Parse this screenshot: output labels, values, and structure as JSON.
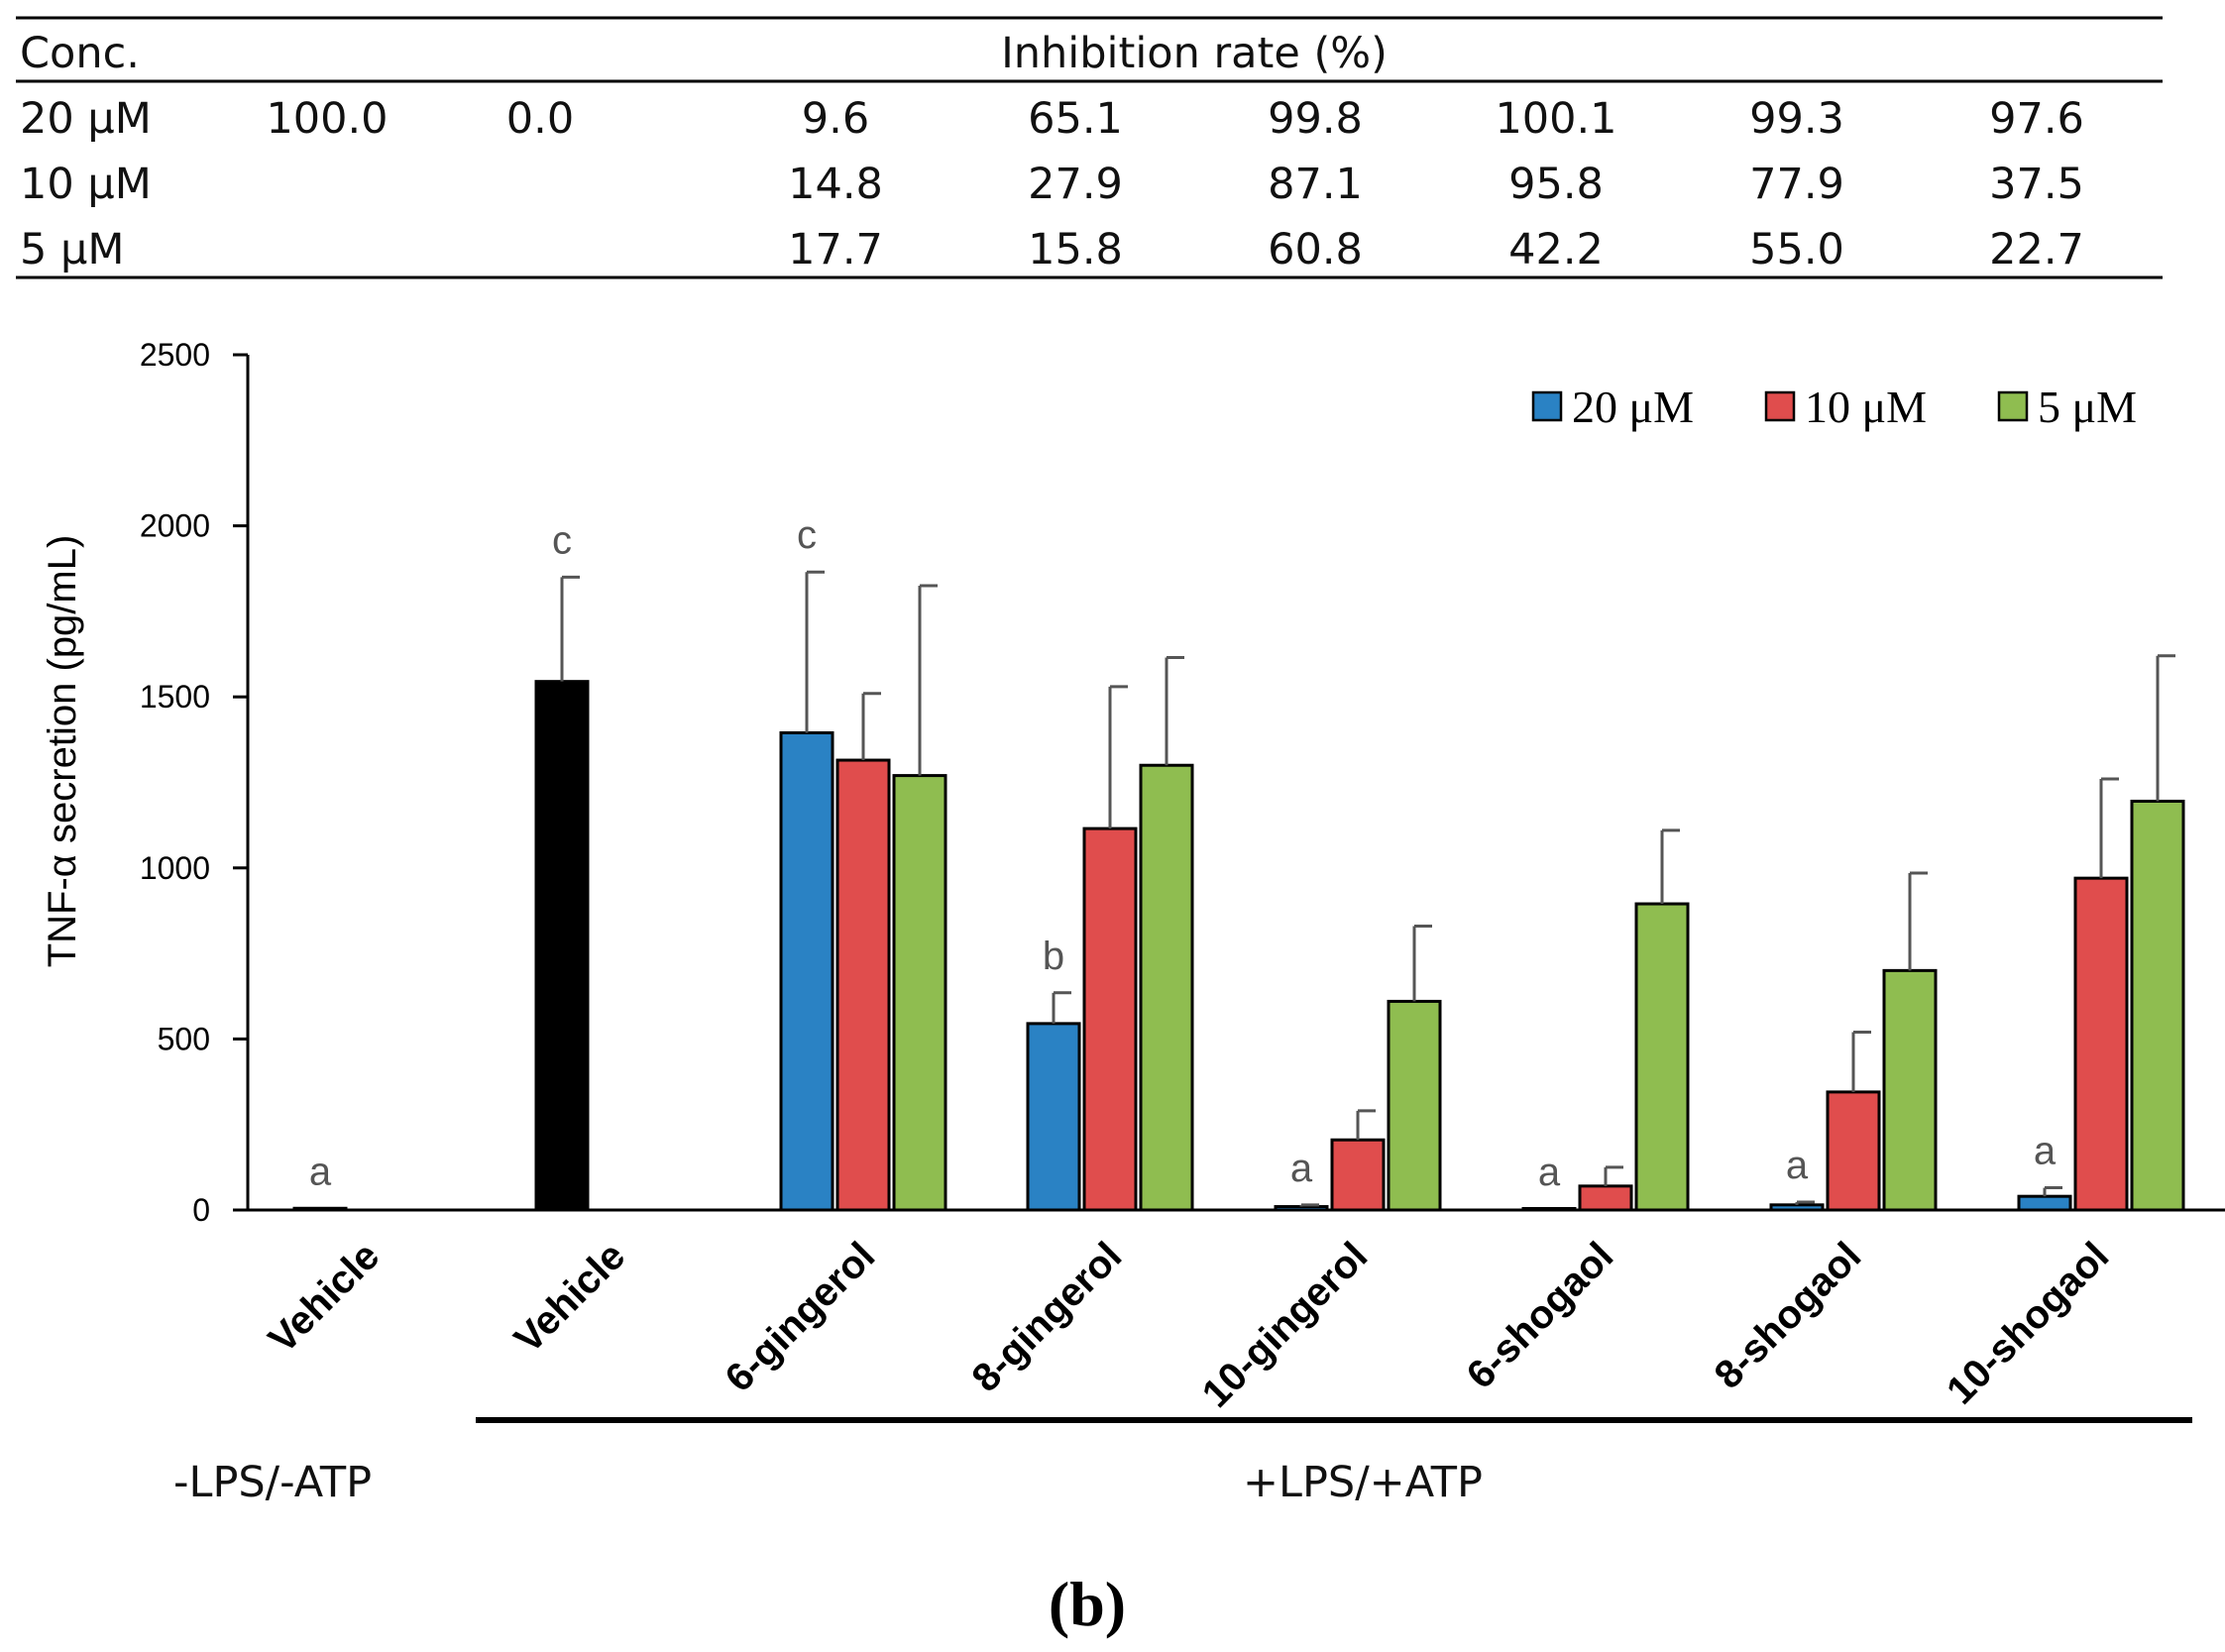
{
  "table": {
    "corner_header": "Conc.",
    "header": "Inhibition rate (%)",
    "rows": [
      {
        "label": "20 μM",
        "values": [
          "100.0",
          "0.0",
          "9.6",
          "65.1",
          "99.8",
          "100.1",
          "99.3",
          "97.6"
        ]
      },
      {
        "label": "10 μM",
        "values": [
          "",
          "",
          "14.8",
          "27.9",
          "87.1",
          "95.8",
          "77.9",
          "37.5"
        ]
      },
      {
        "label": "5 μM",
        "values": [
          "",
          "",
          "17.7",
          "15.8",
          "60.8",
          "42.2",
          "55.0",
          "22.7"
        ]
      }
    ]
  },
  "chart_data": {
    "type": "bar",
    "ylabel": "TNF-α secretion (pg/mL)",
    "ylim": [
      0,
      2500
    ],
    "yticks": [
      "0",
      "500",
      "1000",
      "1500",
      "2000",
      "2500"
    ],
    "categories": [
      "Vehicle",
      "Vehicle",
      "6-gingerol",
      "8-gingerol",
      "10-gingerol",
      "6-shogaol",
      "8-shogaol",
      "10-shogaol"
    ],
    "legend": [
      "20 μM",
      "10 μM",
      "5 μM"
    ],
    "legend_position": "top-right",
    "colors": {
      "s20": "#2a82c4",
      "s10": "#e04d4d",
      "s5": "#8fbd50",
      "vehicle_lps": "#000000",
      "edge": "#000000",
      "errorbar": "#555555"
    },
    "groups": [
      {
        "name": "Vehicle",
        "bars": [
          {
            "series": "control",
            "value": 5,
            "error": 0
          }
        ],
        "letter": "a"
      },
      {
        "name": "Vehicle",
        "bars": [
          {
            "series": "vehicle_lps",
            "value": 1545,
            "error": 305
          }
        ],
        "letter": "c"
      },
      {
        "name": "6-gingerol",
        "bars": [
          {
            "series": "s20",
            "value": 1395,
            "error": 470
          },
          {
            "series": "s10",
            "value": 1315,
            "error": 195
          },
          {
            "series": "s5",
            "value": 1270,
            "error": 555
          }
        ],
        "letter": "c"
      },
      {
        "name": "8-gingerol",
        "bars": [
          {
            "series": "s20",
            "value": 545,
            "error": 90
          },
          {
            "series": "s10",
            "value": 1115,
            "error": 415
          },
          {
            "series": "s5",
            "value": 1300,
            "error": 315
          }
        ],
        "letter": "b"
      },
      {
        "name": "10-gingerol",
        "bars": [
          {
            "series": "s20",
            "value": 10,
            "error": 5
          },
          {
            "series": "s10",
            "value": 205,
            "error": 85
          },
          {
            "series": "s5",
            "value": 610,
            "error": 220
          }
        ],
        "letter": "a"
      },
      {
        "name": "6-shogaol",
        "bars": [
          {
            "series": "s20",
            "value": 3,
            "error": 0
          },
          {
            "series": "s10",
            "value": 70,
            "error": 55
          },
          {
            "series": "s5",
            "value": 895,
            "error": 215
          }
        ],
        "letter": "a"
      },
      {
        "name": "8-shogaol",
        "bars": [
          {
            "series": "s20",
            "value": 15,
            "error": 8
          },
          {
            "series": "s10",
            "value": 345,
            "error": 175
          },
          {
            "series": "s5",
            "value": 700,
            "error": 285
          }
        ],
        "letter": "a"
      },
      {
        "name": "10-shogaol",
        "bars": [
          {
            "series": "s20",
            "value": 40,
            "error": 25
          },
          {
            "series": "s10",
            "value": 970,
            "error": 290
          },
          {
            "series": "s5",
            "value": 1195,
            "error": 425
          }
        ],
        "letter": "a"
      }
    ],
    "condition_labels": {
      "neg": "-LPS/-ATP",
      "pos": "+LPS/+ATP"
    },
    "panel_label": "(b)"
  }
}
